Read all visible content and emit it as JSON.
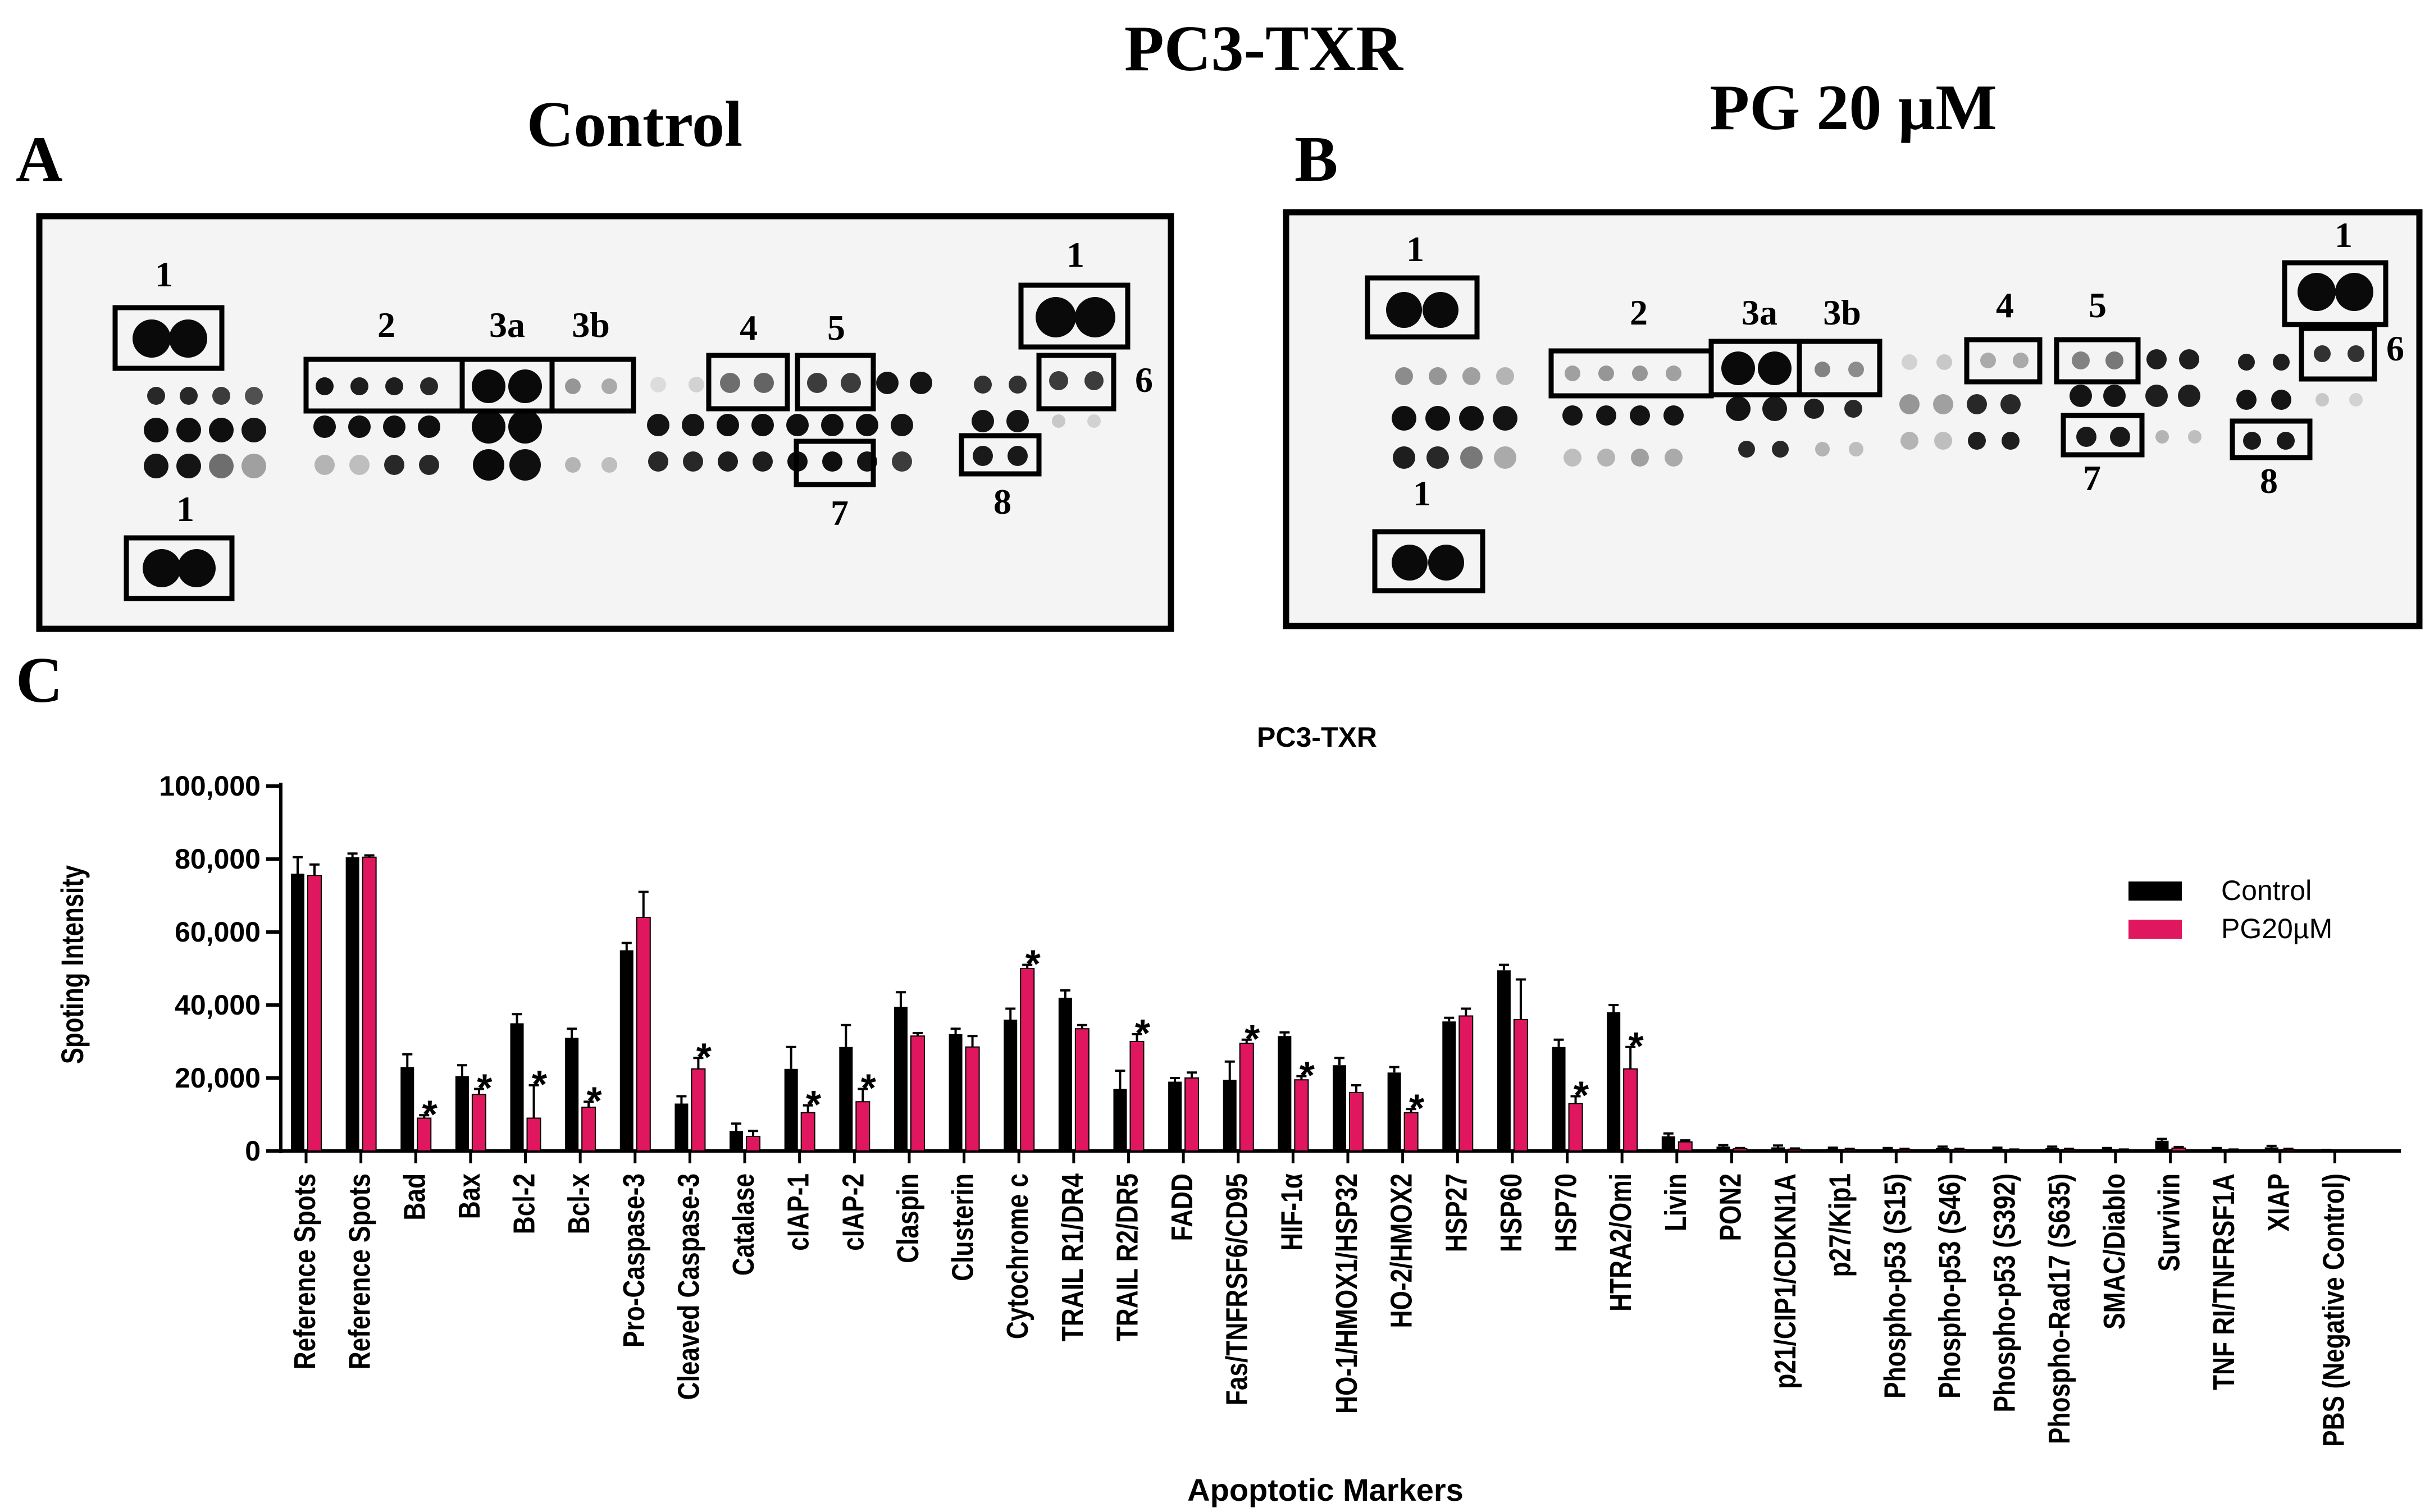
{
  "figure": {
    "title": "PC3-TXR",
    "panel_a": {
      "letter": "A",
      "title": "Control"
    },
    "panel_b": {
      "letter": "B",
      "title": "PG 20 µM"
    },
    "panel_c": {
      "letter": "C"
    },
    "blot_a_labels": [
      "1",
      "1",
      "1",
      "2",
      "3a",
      "3b",
      "4",
      "5",
      "6",
      "7",
      "8"
    ],
    "blot_b_labels": [
      "1",
      "1",
      "1",
      "2",
      "3a",
      "3b",
      "4",
      "5",
      "6",
      "7",
      "8"
    ]
  },
  "colors": {
    "control": "#000000",
    "pg": "#e0175f",
    "blot_bg": "#f4f4f4"
  },
  "chart_data": {
    "type": "bar",
    "title": "PC3-TXR",
    "xlabel": "Apoptotic Markers",
    "ylabel": "Spoting Intensity",
    "ylim": [
      0,
      100000
    ],
    "yticks": [
      0,
      20000,
      40000,
      60000,
      80000,
      100000
    ],
    "ytick_labels": [
      "0",
      "20,000",
      "40,000",
      "60,000",
      "80,000",
      "100,000"
    ],
    "significance_marker": "*",
    "categories": [
      "Reference Spots",
      "Reference Spots",
      "Bad",
      "Bax",
      "Bcl-2",
      "Bcl-x",
      "Pro-Caspase-3",
      "Cleaved Caspase-3",
      "Catalase",
      "cIAP-1",
      "cIAP-2",
      "Claspin",
      "Clusterin",
      "Cytochrome c",
      "TRAIL R1/DR4",
      "TRAIL R2/DR5",
      "FADD",
      "Fas/TNFRSF6/CD95",
      "HIF-1α",
      "HO-1/HMOX1/HSP32",
      "HO-2/HMOX2",
      "HSP27",
      "HSP60",
      "HSP70",
      "HTRA2/Omi",
      "Livin",
      "PON2",
      "p21/CIP1/CDKN1A",
      "p27/Kip1",
      "Phospho-p53 (S15)",
      "Phospho-p53 (S46)",
      "Phospho-p53 (S392)",
      "Phospho-Rad17 (S635)",
      "SMAC/Diablo",
      "Survivin",
      "TNF RI/TNFRSF1A",
      "XIAP",
      "PBS (Negative Control)"
    ],
    "series": [
      {
        "name": "Control",
        "values": [
          76000,
          80500,
          23000,
          20500,
          35000,
          31000,
          55000,
          13000,
          5500,
          22500,
          28500,
          39500,
          32000,
          36000,
          42000,
          17000,
          19000,
          19500,
          31500,
          23500,
          21500,
          35500,
          49500,
          28500,
          38000,
          4000,
          1200,
          1000,
          600,
          500,
          800,
          600,
          800,
          500,
          2800,
          500,
          1000,
          200
        ],
        "errors": [
          4500,
          1000,
          3500,
          3000,
          2500,
          2500,
          2000,
          2000,
          2000,
          6000,
          6000,
          4000,
          1500,
          3000,
          2000,
          5000,
          1000,
          5000,
          1000,
          2000,
          1500,
          1000,
          1500,
          2000,
          2000,
          800,
          400,
          500,
          300,
          300,
          400,
          300,
          400,
          300,
          500,
          300,
          400,
          100
        ]
      },
      {
        "name": "PG20µM",
        "values": [
          75500,
          80500,
          9000,
          15500,
          9000,
          12000,
          64000,
          22500,
          4000,
          10500,
          13500,
          31500,
          28500,
          50000,
          33500,
          30000,
          20000,
          29500,
          19500,
          16000,
          10500,
          37000,
          36000,
          13000,
          22500,
          2500,
          600,
          500,
          400,
          400,
          400,
          300,
          400,
          300,
          800,
          300,
          400,
          100
        ],
        "errors": [
          3000,
          500,
          800,
          1500,
          9000,
          1500,
          7000,
          3000,
          1500,
          2000,
          3500,
          800,
          3000,
          1000,
          1000,
          2000,
          1500,
          1000,
          1000,
          2000,
          1000,
          2000,
          11000,
          2000,
          6000,
          400,
          200,
          200,
          200,
          200,
          200,
          100,
          200,
          100,
          300,
          100,
          200,
          50
        ]
      }
    ],
    "significant_pg": [
      false,
      false,
      true,
      true,
      true,
      true,
      false,
      true,
      false,
      true,
      true,
      false,
      false,
      true,
      false,
      true,
      false,
      true,
      true,
      false,
      true,
      false,
      false,
      true,
      true,
      false,
      false,
      false,
      false,
      false,
      false,
      false,
      false,
      false,
      false,
      false,
      false,
      false
    ],
    "legend": [
      "Control",
      "PG20µM"
    ],
    "legend_position": "top-right"
  }
}
